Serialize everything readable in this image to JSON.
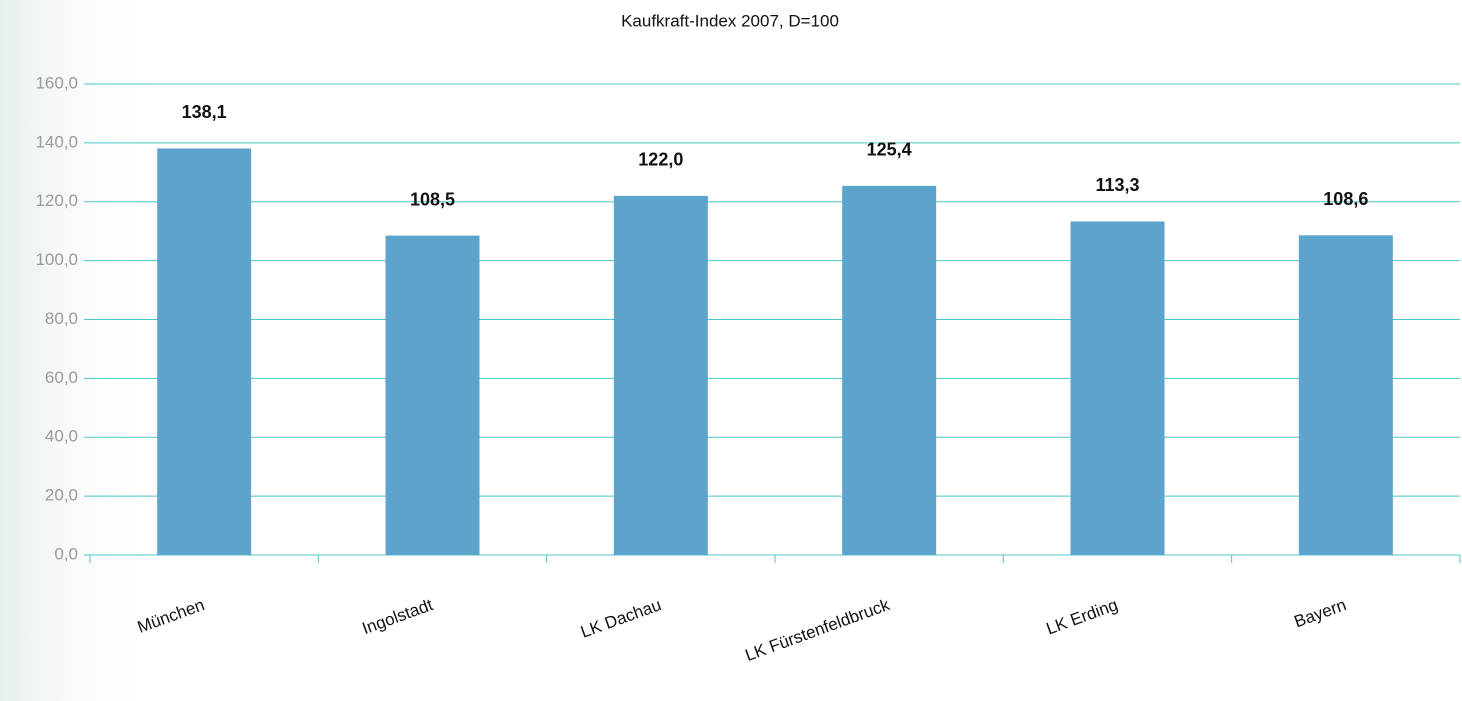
{
  "chart_data": {
    "type": "bar",
    "title": "Kaufkraft-Index 2007, D=100",
    "categories": [
      "München",
      "Ingolstadt",
      "LK Dachau",
      "LK Fürstenfeldbruck",
      "LK Erding",
      "Bayern"
    ],
    "values": [
      138.1,
      108.5,
      122.0,
      125.4,
      113.3,
      108.6
    ],
    "value_labels": [
      "138,1",
      "108,5",
      "122,0",
      "125,4",
      "113,3",
      "108,6"
    ],
    "color": "#5ca4cc",
    "ylim": [
      0,
      160
    ],
    "yticks": [
      {
        "value": 0,
        "label": "0,0"
      },
      {
        "value": 20,
        "label": "20,0"
      },
      {
        "value": 40,
        "label": "40,0"
      },
      {
        "value": 60,
        "label": "60,0"
      },
      {
        "value": 80,
        "label": "80,0"
      },
      {
        "value": 100,
        "label": "100,0"
      },
      {
        "value": 120,
        "label": "120,0"
      },
      {
        "value": 140,
        "label": "140,0"
      },
      {
        "value": 160,
        "label": "160,0"
      }
    ],
    "grid": true
  }
}
